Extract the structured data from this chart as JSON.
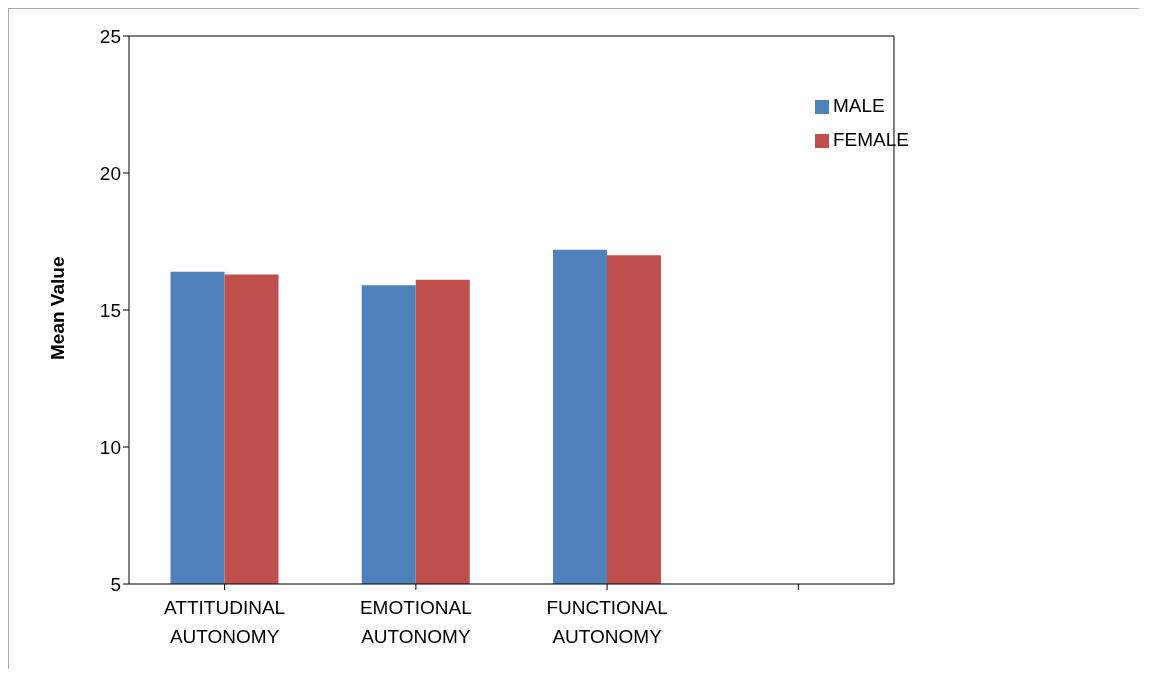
{
  "chart_data": {
    "type": "bar",
    "ylabel": "Mean Value",
    "categories": [
      "ATTITUDINAL AUTONOMY",
      "EMOTIONAL AUTONOMY",
      "FUNCTIONAL AUTONOMY",
      null
    ],
    "series": [
      {
        "name": "MALE",
        "color": "#4f81bd",
        "values": [
          16.4,
          15.9,
          17.2,
          null
        ]
      },
      {
        "name": "FEMALE",
        "color": "#c0504d",
        "values": [
          16.3,
          16.1,
          17.0,
          null
        ]
      }
    ],
    "ylim": [
      5,
      25
    ],
    "yticks": [
      5,
      10,
      15,
      20,
      25
    ],
    "grid": false,
    "legend": "top right"
  }
}
